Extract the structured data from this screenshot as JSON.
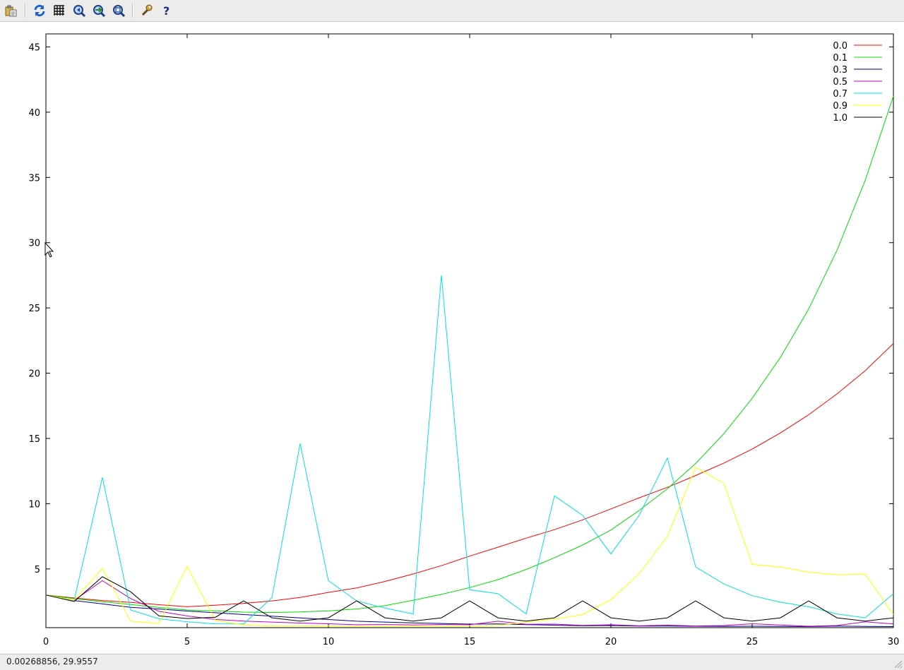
{
  "toolbar": {
    "buttons": [
      {
        "name": "copy-clipboard-icon"
      },
      {
        "name": "replot-icon"
      },
      {
        "name": "grid-icon"
      },
      {
        "name": "unzoom-icon"
      },
      {
        "name": "rezoom-icon"
      },
      {
        "name": "next-zoom-icon"
      },
      {
        "name": "settings-wrench-icon"
      },
      {
        "name": "help-icon"
      }
    ]
  },
  "status": {
    "coords": "0.00268856,  29.9557"
  },
  "chart_data": {
    "type": "line",
    "title": "",
    "xlabel": "",
    "ylabel": "",
    "xlim": [
      0,
      30
    ],
    "ylim": [
      0.5,
      46
    ],
    "xticks": [
      0,
      5,
      10,
      15,
      20,
      25,
      30
    ],
    "yticks": [
      5,
      10,
      15,
      20,
      25,
      30,
      35,
      40,
      45
    ],
    "grid": false,
    "legend_position": "top-right",
    "x": [
      0,
      1,
      2,
      3,
      4,
      5,
      6,
      7,
      8,
      9,
      10,
      11,
      12,
      13,
      14,
      15,
      16,
      17,
      18,
      19,
      20,
      21,
      22,
      23,
      24,
      25,
      26,
      27,
      28,
      29,
      30
    ],
    "series": [
      {
        "name": "0.0",
        "color": "#ff0000",
        "values": [
          3.0,
          2.77,
          2.58,
          2.43,
          2.26,
          2.1,
          2.22,
          2.36,
          2.55,
          2.81,
          3.2,
          3.54,
          4.04,
          4.61,
          5.25,
          5.98,
          6.66,
          7.36,
          8.01,
          8.76,
          9.6,
          10.45,
          11.25,
          12.16,
          13.11,
          14.18,
          15.42,
          16.81,
          18.41,
          20.19,
          22.27
        ]
      },
      {
        "name": "0.1",
        "color": "#00dd00",
        "values": [
          3.0,
          2.72,
          2.49,
          2.27,
          2.05,
          1.85,
          1.78,
          1.69,
          1.66,
          1.7,
          1.78,
          1.93,
          2.18,
          2.6,
          3.05,
          3.57,
          4.18,
          4.96,
          5.85,
          6.83,
          7.98,
          9.48,
          11.14,
          13.08,
          15.37,
          18.07,
          21.21,
          24.91,
          29.4,
          34.77,
          41.23
        ]
      },
      {
        "name": "0.3",
        "color": "#000080",
        "values": [
          3.0,
          2.58,
          2.32,
          2.06,
          1.93,
          1.77,
          1.64,
          1.5,
          1.38,
          1.24,
          1.12,
          0.99,
          0.93,
          0.87,
          0.82,
          0.77,
          0.78,
          0.73,
          0.69,
          0.64,
          0.66,
          0.62,
          0.62,
          0.61,
          0.6,
          0.61,
          0.59,
          0.58,
          0.62,
          0.6,
          0.58
        ]
      },
      {
        "name": "0.5",
        "color": "#c000c0",
        "values": [
          3.0,
          2.59,
          4.1,
          2.73,
          1.75,
          1.4,
          1.13,
          1.0,
          0.93,
          0.85,
          0.8,
          0.72,
          0.74,
          0.71,
          0.74,
          0.72,
          0.99,
          0.76,
          0.77,
          0.67,
          0.72,
          0.64,
          0.69,
          0.63,
          0.66,
          0.8,
          0.7,
          0.61,
          0.66,
          0.95,
          0.78
        ]
      },
      {
        "name": "0.7",
        "color": "#00e0e0",
        "values": [
          3.0,
          2.6,
          12.0,
          1.85,
          1.18,
          0.95,
          0.79,
          0.78,
          2.8,
          14.6,
          4.1,
          2.55,
          2.0,
          1.55,
          27.5,
          3.4,
          3.1,
          1.55,
          10.6,
          9.1,
          6.15,
          9.1,
          13.5,
          5.15,
          3.85,
          2.95,
          2.45,
          2.1,
          1.55,
          1.25,
          3.1
        ]
      },
      {
        "name": "0.9",
        "color": "#ffff00",
        "values": [
          3.0,
          2.6,
          5.05,
          1.0,
          0.82,
          5.2,
          1.05,
          0.7,
          0.64,
          0.65,
          0.62,
          0.62,
          0.6,
          0.62,
          0.61,
          0.63,
          0.66,
          0.92,
          1.15,
          1.5,
          2.65,
          4.62,
          7.5,
          12.8,
          11.55,
          5.35,
          5.15,
          4.75,
          4.55,
          4.6,
          1.5
        ]
      },
      {
        "name": "1.0",
        "color": "#000000",
        "values": [
          3.0,
          2.5,
          4.4,
          3.25,
          1.4,
          1.2,
          1.3,
          2.55,
          1.25,
          1.0,
          1.25,
          2.55,
          1.25,
          1.0,
          1.25,
          2.55,
          1.25,
          1.0,
          1.25,
          2.55,
          1.25,
          1.0,
          1.25,
          2.55,
          1.25,
          1.0,
          1.25,
          2.55,
          1.25,
          1.0,
          1.25
        ]
      }
    ]
  }
}
